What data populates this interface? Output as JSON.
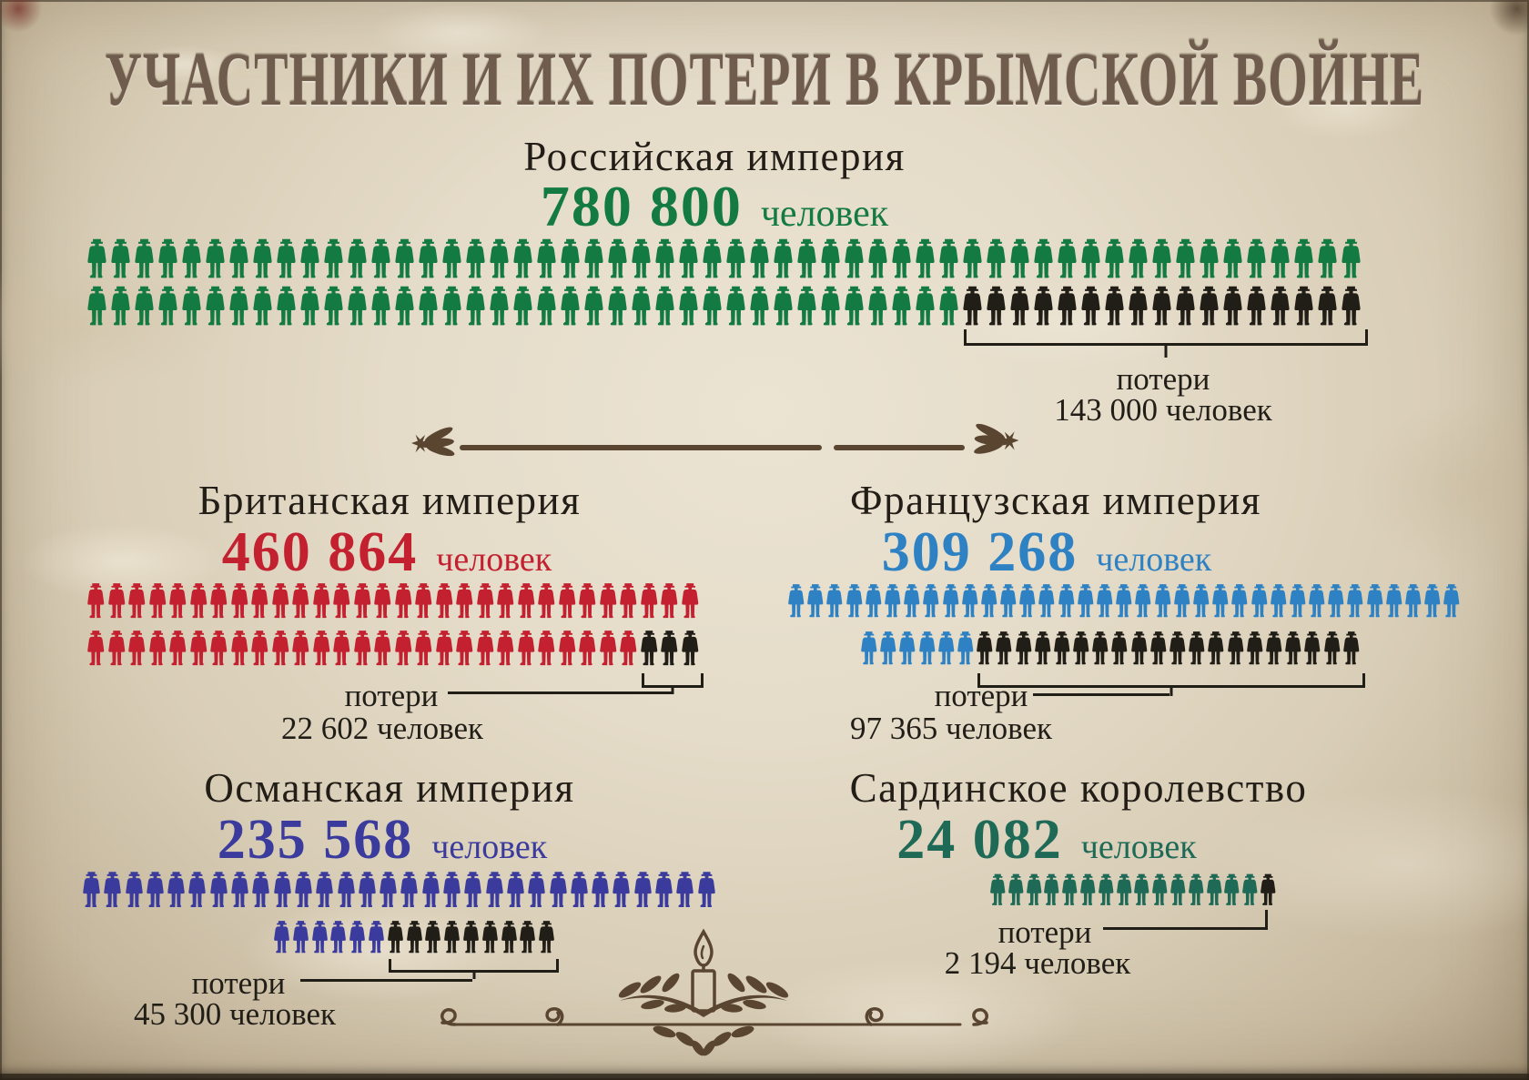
{
  "title": "УЧАСТНИКИ И ИХ ПОТЕРИ В КРЫМСКОЙ ВОЙНЕ",
  "colors": {
    "title": "#6f5c4c",
    "text": "#221d16",
    "losses": "#211d17",
    "divider": "#5a4531",
    "background": "#e2d9c5"
  },
  "sections": [
    {
      "id": "russia",
      "name": "Российская империя",
      "value": "780 800",
      "unit": "человек",
      "color": "#137a41",
      "loss_label": "потери",
      "loss_value": "143 000 человек",
      "rows": [
        {
          "count": 54,
          "loss": 0
        },
        {
          "count": 54,
          "loss": 17
        }
      ]
    },
    {
      "id": "britain",
      "name": "Британская империя",
      "value": "460 864",
      "unit": "человек",
      "color": "#c32030",
      "loss_label": "потери",
      "loss_value": "22 602 человек",
      "rows": [
        {
          "count": 30,
          "loss": 0
        },
        {
          "count": 30,
          "loss": 3
        }
      ]
    },
    {
      "id": "france",
      "name": "Французская империя",
      "value": "309 268",
      "unit": "человек",
      "color": "#2e82c3",
      "loss_label": "потери",
      "loss_value": "97 365 человек",
      "rows": [
        {
          "count": 35,
          "loss": 0
        },
        {
          "count": 26,
          "loss": 20
        }
      ]
    },
    {
      "id": "ottoman",
      "name": "Османская империя",
      "value": "235 568",
      "unit": "человек",
      "color": "#3a3b9d",
      "loss_label": "потери",
      "loss_value": "45 300 человек",
      "rows": [
        {
          "count": 30,
          "loss": 0
        },
        {
          "count": 15,
          "loss": 9
        }
      ]
    },
    {
      "id": "sardinia",
      "name": "Сардинское королевство",
      "value": "24 082",
      "unit": "человек",
      "color": "#1e6a57",
      "loss_label": "потери",
      "loss_value": "2 194 человек",
      "rows": [
        {
          "count": 16,
          "loss": 1
        }
      ]
    }
  ],
  "chart_data": {
    "type": "pictogram",
    "title": "УЧАСТНИКИ И ИХ ПОТЕРИ В КРЫМСКОЙ ВОЙНЕ",
    "unit": "человек",
    "series": [
      {
        "name": "Российская империя",
        "participants": 780800,
        "losses": 143000,
        "color": "#137a41"
      },
      {
        "name": "Британская империя",
        "participants": 460864,
        "losses": 22602,
        "color": "#c32030"
      },
      {
        "name": "Французская империя",
        "participants": 309268,
        "losses": 97365,
        "color": "#2e82c3"
      },
      {
        "name": "Османская империя",
        "participants": 235568,
        "losses": 45300,
        "color": "#3a3b9d"
      },
      {
        "name": "Сардинское королевство",
        "participants": 24082,
        "losses": 2194,
        "color": "#1e6a57"
      }
    ],
    "losses_color": "#211d17",
    "legend": "black figures at row ends = losses (потери)"
  }
}
